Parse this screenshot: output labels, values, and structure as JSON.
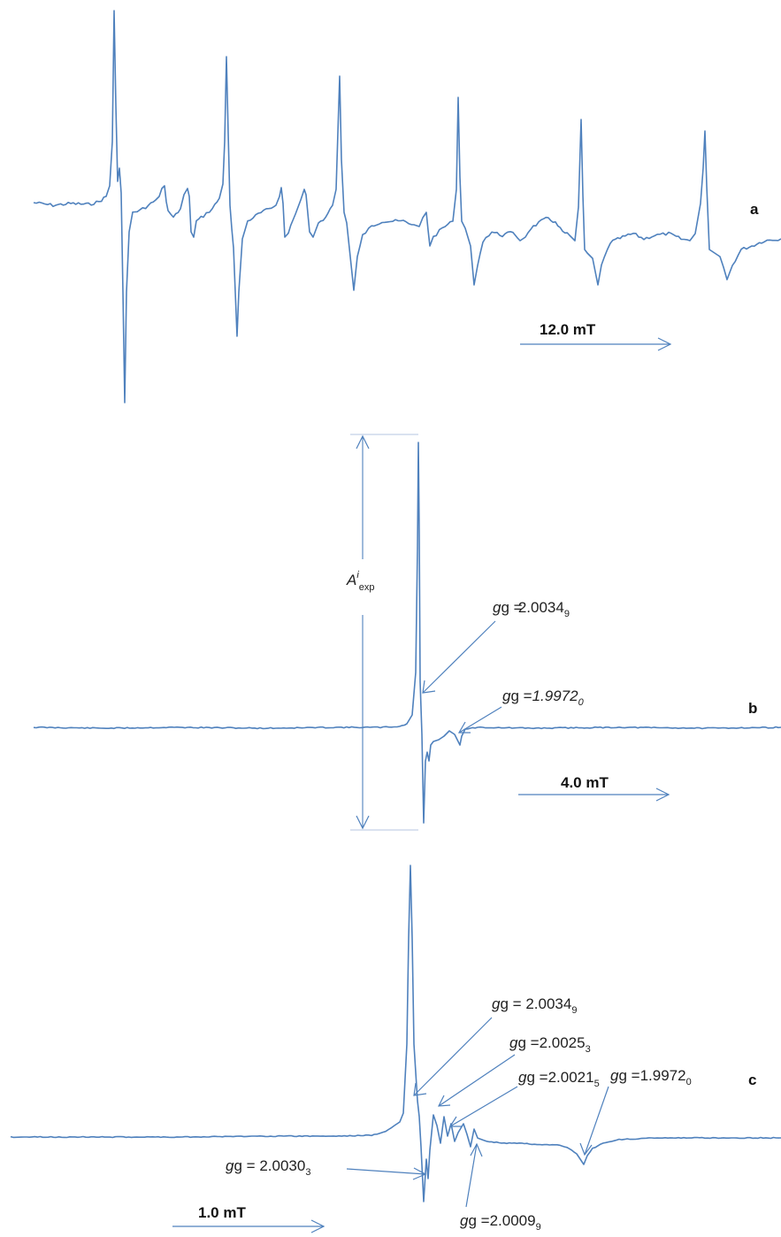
{
  "chart_data": [
    {
      "type": "line",
      "panel_label": "a",
      "scale_bar": "12.0 mT",
      "annotations": []
    },
    {
      "type": "line",
      "panel_label": "b",
      "scale_bar": "4.0 mT",
      "amplitude_label": {
        "main": "A",
        "sup": "i",
        "sub": "exp"
      },
      "annotations": [
        {
          "prefix": "g = ",
          "main": "2.0034",
          "sub": "9"
        },
        {
          "prefix": "g =",
          "main": "1.9972",
          "sub": "0"
        }
      ]
    },
    {
      "type": "line",
      "panel_label": "c",
      "scale_bar": "1.0 mT",
      "annotations": [
        {
          "prefix": "g = ",
          "main": "2.0034",
          "sub": "9"
        },
        {
          "prefix": "g =",
          "main": "2.0025",
          "sub": "3"
        },
        {
          "prefix": "g =",
          "main": "2.0021",
          "sub": "5"
        },
        {
          "prefix": "g =",
          "main": "1.9972",
          "sub": "0"
        },
        {
          "prefix": "g = ",
          "main": "2.0030",
          "sub": "3"
        },
        {
          "prefix": "g =",
          "main": "2.0009",
          "sub": "9"
        }
      ]
    }
  ]
}
